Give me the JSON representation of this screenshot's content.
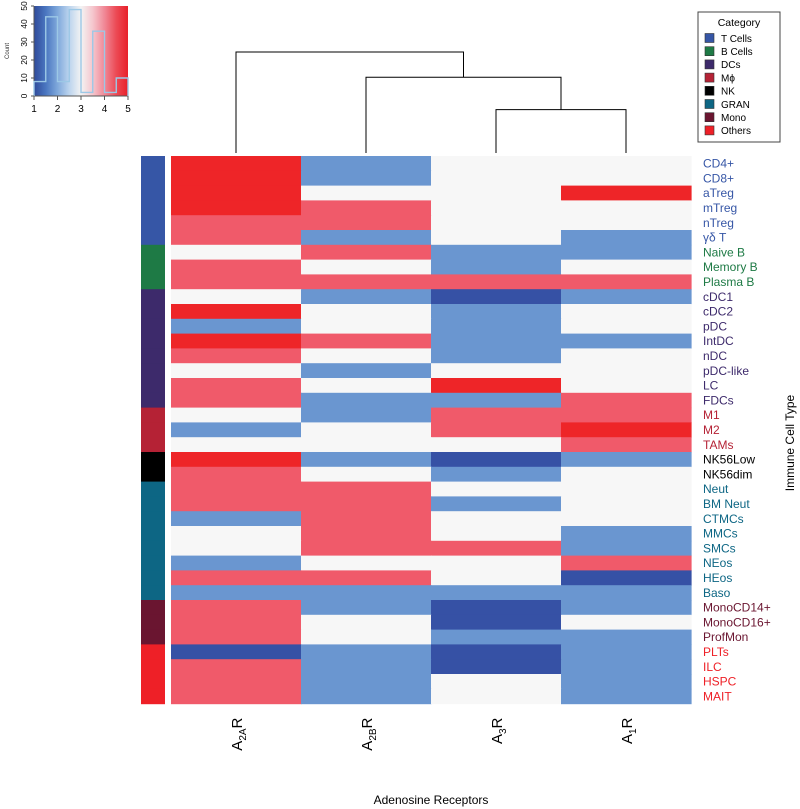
{
  "chart_data": {
    "type": "heatmap",
    "xlabel": "Adenosine Receptors",
    "ylabel": "Immune Cell Type",
    "columns": [
      {
        "base": "A",
        "sub": "2A",
        "tail": "R"
      },
      {
        "base": "A",
        "sub": "2B",
        "tail": "R"
      },
      {
        "base": "A",
        "sub": "3",
        "tail": "R"
      },
      {
        "base": "A",
        "sub": "1",
        "tail": "R"
      }
    ],
    "rows": [
      "CD4+",
      "CD8+",
      "aTreg",
      "mTreg",
      "nTreg",
      "γδ T",
      "Naive B",
      "Memory B",
      "Plasma B",
      "cDC1",
      "cDC2",
      "pDC",
      "IntDC",
      "nDC",
      "pDC-like",
      "LC",
      "FDCs",
      "M1",
      "M2",
      "TAMs",
      "NK56Low",
      "NK56dim",
      "Neut",
      "BM Neut",
      "CTMCs",
      "MMCs",
      "SMCs",
      "NEos",
      "HEos",
      "Baso",
      "MonoCD14+",
      "MonoCD16+",
      "ProfMon",
      "PLTs",
      "ILC",
      "HSPC",
      "MAIT"
    ],
    "row_category": [
      0,
      0,
      0,
      0,
      0,
      0,
      1,
      1,
      1,
      2,
      2,
      2,
      2,
      2,
      2,
      2,
      2,
      3,
      3,
      3,
      4,
      4,
      5,
      5,
      5,
      5,
      5,
      5,
      5,
      5,
      6,
      6,
      6,
      7,
      7,
      7,
      7
    ],
    "values": [
      [
        5,
        2,
        1,
        1
      ],
      [
        5,
        2,
        1,
        1
      ],
      [
        5,
        1,
        1,
        5
      ],
      [
        5,
        4,
        1,
        1
      ],
      [
        4,
        4,
        1,
        1
      ],
      [
        4,
        2,
        1,
        2
      ],
      [
        1,
        4,
        2,
        2
      ],
      [
        4,
        1,
        2,
        1
      ],
      [
        4,
        4,
        4,
        4
      ],
      [
        1,
        2,
        3,
        2
      ],
      [
        5,
        1,
        2,
        1
      ],
      [
        2,
        1,
        2,
        1
      ],
      [
        5,
        4,
        2,
        2
      ],
      [
        4,
        1,
        2,
        1
      ],
      [
        1,
        2,
        1,
        1
      ],
      [
        4,
        1,
        5,
        1
      ],
      [
        4,
        2,
        2,
        4
      ],
      [
        1,
        2,
        4,
        4
      ],
      [
        2,
        1,
        4,
        5
      ],
      [
        1,
        1,
        1,
        4
      ],
      [
        5,
        2,
        3,
        2
      ],
      [
        4,
        1,
        2,
        1
      ],
      [
        4,
        4,
        1,
        1
      ],
      [
        4,
        4,
        2,
        1
      ],
      [
        2,
        4,
        1,
        1
      ],
      [
        1,
        4,
        1,
        2
      ],
      [
        1,
        4,
        4,
        2
      ],
      [
        2,
        1,
        1,
        4
      ],
      [
        4,
        4,
        1,
        3
      ],
      [
        2,
        2,
        2,
        2
      ],
      [
        4,
        2,
        3,
        2
      ],
      [
        4,
        1,
        3,
        1
      ],
      [
        4,
        1,
        2,
        2
      ],
      [
        3,
        2,
        3,
        2
      ],
      [
        4,
        2,
        3,
        2
      ],
      [
        4,
        2,
        1,
        2
      ],
      [
        4,
        2,
        1,
        2
      ]
    ],
    "value_colors": {
      "1": "#F7F7F7",
      "2": "#6A96D0",
      "3": "#3651A5",
      "4": "#F05A6A",
      "5": "#EE2528"
    },
    "color_key": {
      "ticks": [
        "1",
        "2",
        "3",
        "4",
        "5"
      ],
      "yticks": [
        "0",
        "10",
        "20",
        "30",
        "40",
        "50"
      ],
      "ylabel": "Count",
      "range": [
        1,
        5
      ],
      "count_max": 50,
      "gradient": [
        "#2F4A9A",
        "#4A76C0",
        "#7FA8DB",
        "#BCD4EE",
        "#F3F3F3",
        "#F5C6CD",
        "#F08896",
        "#EC4A55",
        "#E8202A"
      ],
      "histogram": [
        8,
        44,
        8,
        48,
        2,
        36,
        2,
        10
      ]
    },
    "legend": {
      "title": "Category",
      "position": "top-right",
      "entries": [
        {
          "label": "T Cells",
          "color": "#3656A6"
        },
        {
          "label": "B Cells",
          "color": "#1E7A45"
        },
        {
          "label": "DCs",
          "color": "#3D2A6B"
        },
        {
          "label": "Mϕ",
          "color": "#B52235"
        },
        {
          "label": "NK",
          "color": "#000000"
        },
        {
          "label": "GRAN",
          "color": "#0D6684"
        },
        {
          "label": "Mono",
          "color": "#6A1530"
        },
        {
          "label": "Others",
          "color": "#EE2027"
        }
      ]
    },
    "dendrogram": {
      "merges": [
        [
          2,
          3
        ],
        [
          1,
          "m0"
        ],
        [
          0,
          "m1"
        ]
      ],
      "heights": [
        0.43,
        0.75,
        1.0
      ]
    }
  }
}
